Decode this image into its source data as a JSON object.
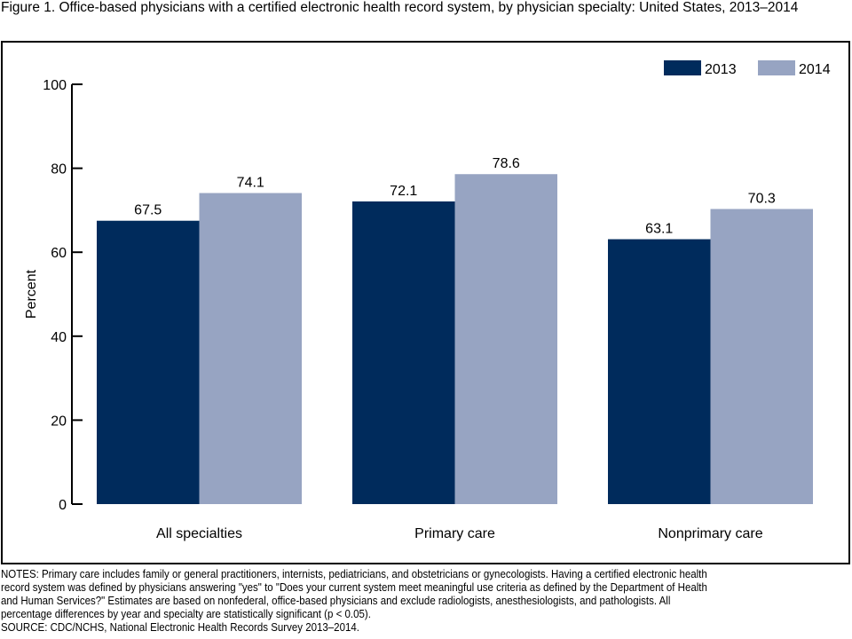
{
  "title": "Figure 1. Office-based physicians with a certified electronic health record system, by physician specialty: United States, 2013–2014",
  "chart_data": {
    "type": "bar",
    "title": "Figure 1. Office-based physicians with a certified electronic health record system, by physician specialty: United States, 2013–2014",
    "xlabel": "",
    "ylabel": "Percent",
    "ylim": [
      0,
      100
    ],
    "yticks": [
      0,
      20,
      40,
      60,
      80,
      100
    ],
    "categories": [
      "All specialties",
      "Primary care",
      "Nonprimary care"
    ],
    "series": [
      {
        "name": "2013",
        "color": "#002b5c",
        "values": [
          67.5,
          72.1,
          63.1
        ]
      },
      {
        "name": "2014",
        "color": "#97a4c2",
        "values": [
          74.1,
          78.6,
          70.3
        ]
      }
    ],
    "legend": "top-right",
    "grid": false
  },
  "notes": [
    "NOTES: Primary care includes family or general practitioners, internists, pediatricians, and obstetricians or gynecologists. Having a certified electronic health",
    "record system was defined by physicians answering \"yes\" to \"Does your current system meet meaningful use criteria as defined by the Department of Health",
    "and Human Services?\" Estimates are based on nonfederal, office-based physicians and exclude radiologists, anesthesiologists, and pathologists. All",
    "percentage differences by year and specialty are statistically significant (p < 0.05).",
    "SOURCE: CDC/NCHS, National Electronic Health Records Survey 2013–2014."
  ]
}
